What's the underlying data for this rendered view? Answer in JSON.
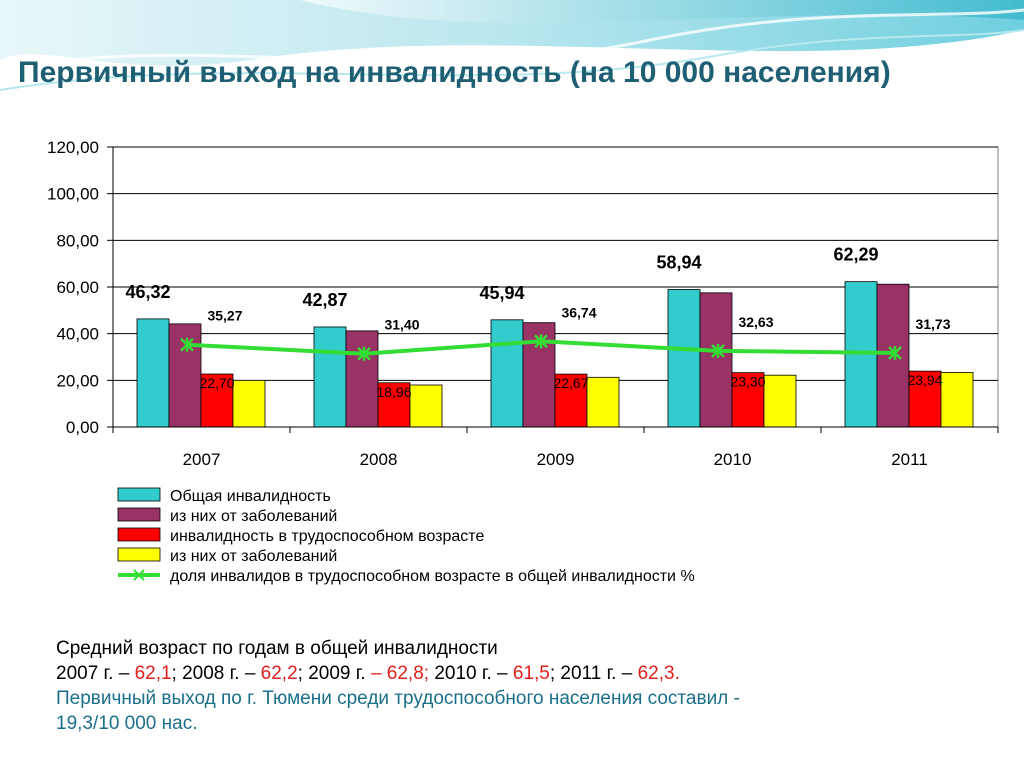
{
  "title": "Первичный выход на инвалидность (на 10 000 населения)",
  "colors": {
    "bar_total": "#33cccc",
    "bar_total_disease": "#993366",
    "bar_working": "#ff0000",
    "bar_working_disease": "#ffff00",
    "line_share": "#33dd33",
    "title": "#1f5f73"
  },
  "chart_data": {
    "type": "bar",
    "categories": [
      "2007",
      "2008",
      "2009",
      "2010",
      "2011"
    ],
    "ylim": [
      0,
      120
    ],
    "yticks": [
      "0,00",
      "20,00",
      "40,00",
      "60,00",
      "80,00",
      "100,00",
      "120,00"
    ],
    "grid": true,
    "legend_position": "bottom",
    "series": [
      {
        "name": "Общая инвалидность",
        "color": "#33cccc",
        "values": [
          46.32,
          42.87,
          45.94,
          58.94,
          62.29
        ],
        "labels": [
          "46,32",
          "42,87",
          "45,94",
          "58,94",
          "62,29"
        ]
      },
      {
        "name": "из них от заболеваний",
        "color": "#993366",
        "values": [
          44.2,
          41.2,
          44.7,
          57.5,
          61.2
        ]
      },
      {
        "name": "инвалидность в трудоспособном возрасте",
        "color": "#ff0000",
        "values": [
          22.7,
          18.96,
          22.67,
          23.3,
          23.94
        ],
        "labels": [
          "22,70",
          "18,96",
          "22,67",
          "23,30",
          "23,94"
        ]
      },
      {
        "name": "из них от заболеваний",
        "color": "#ffff00",
        "values": [
          20.0,
          18.0,
          21.3,
          22.2,
          23.4
        ]
      },
      {
        "name": "доля инвалидов в трудоспособном возрасте в общей инвалидности %",
        "color": "#33dd33",
        "type": "line",
        "values": [
          35.27,
          31.4,
          36.74,
          32.63,
          31.73
        ],
        "labels": [
          "35,27",
          "31,40",
          "36,74",
          "32,63",
          "31,73"
        ]
      }
    ]
  },
  "notes": {
    "line1": "Средний возраст по годам в общей инвалидности",
    "line2": [
      {
        "text": "2007 г. – ",
        "cls": ""
      },
      {
        "text": "62,1",
        "cls": "red"
      },
      {
        "text": "; 2008 г. – ",
        "cls": ""
      },
      {
        "text": "62,2",
        "cls": "red"
      },
      {
        "text": "; 2009 г. ",
        "cls": ""
      },
      {
        "text": "– 62,8;",
        "cls": "red"
      },
      {
        "text": " 2010 г. – ",
        "cls": ""
      },
      {
        "text": "61,5",
        "cls": "red"
      },
      {
        "text": "; 2011 г. – ",
        "cls": ""
      },
      {
        "text": "62,3.",
        "cls": "red"
      }
    ],
    "line3": "Первичный выход по г. Тюмени среди трудоспособного населения составил -",
    "line4": "19,3/10 000 нас."
  }
}
